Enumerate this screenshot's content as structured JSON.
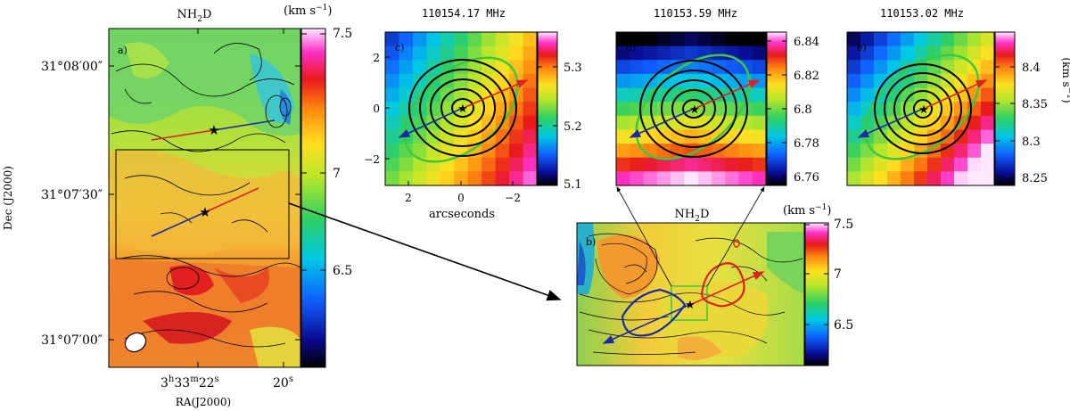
{
  "figure": {
    "panel_a": {
      "label": "a)",
      "title": "NH",
      "title_sub": "2",
      "title_end": "D",
      "colorbar_unit": "(km s",
      "colorbar_unit_sup": "−1",
      "colorbar_unit_end": ")",
      "colorbar_ticks": [
        "7.5",
        "7",
        "6.5"
      ],
      "dec_ticks": [
        "31°08′00″",
        "31°07′30″",
        "31°07′00″"
      ],
      "ra_ticks": [
        "3",
        "h",
        "33",
        "m",
        "22",
        "s",
        "20",
        "s"
      ],
      "xlabel": "RA(J2000)",
      "ylabel": "Dec (J2000)"
    },
    "panel_b": {
      "label": "b)",
      "title": "NH",
      "title_sub": "2",
      "title_end": "D",
      "colorbar_unit": "(km s",
      "colorbar_unit_sup": "−1",
      "colorbar_unit_end": ")",
      "colorbar_ticks": [
        "7.5",
        "7",
        "6.5"
      ]
    },
    "panel_c": {
      "label": "c)",
      "title": "110154.17 MHz",
      "colorbar_ticks": [
        "5.3",
        "5.2",
        "5.1"
      ],
      "x_ticks": [
        "2",
        "0",
        "−2"
      ],
      "y_ticks": [
        "2",
        "0",
        "−2"
      ],
      "xlabel": "arcseconds"
    },
    "panel_d": {
      "label": "d)",
      "title": "110153.59 MHz",
      "colorbar_ticks": [
        "6.84",
        "6.82",
        "6.8",
        "6.78",
        "6.76"
      ]
    },
    "panel_e": {
      "label": "e)",
      "title": "110153.02 MHz",
      "colorbar_ticks": [
        "8.4",
        "8.35",
        "8.3",
        "8.25"
      ],
      "colorbar_unit": "(km s",
      "colorbar_unit_sup": "−1",
      "colorbar_unit_end": ")"
    }
  },
  "chart_data": [
    {
      "type": "heatmap",
      "panel": "a",
      "title": "NH2D",
      "colorbar_label": "(km s−1)",
      "colorbar_range": [
        6.0,
        7.5
      ],
      "colorbar_ticks": [
        7.5,
        7,
        6.5
      ],
      "y_ticks": [
        "31°08′00″",
        "31°07′30″",
        "31°07′00″"
      ],
      "x_ticks": [
        "3h33m22s",
        "20s"
      ],
      "xlabel": "RA(J2000)",
      "ylabel": "Dec (J2000)",
      "colormap": "rainbow"
    },
    {
      "type": "heatmap",
      "panel": "b",
      "title": "NH2D",
      "colorbar_label": "(km s−1)",
      "colorbar_range": [
        6.0,
        7.5
      ],
      "colorbar_ticks": [
        7.5,
        7,
        6.5
      ],
      "colormap": "rainbow"
    },
    {
      "type": "heatmap",
      "panel": "c",
      "title": "110154.17 MHz",
      "colorbar_range": [
        5.1,
        5.35
      ],
      "colorbar_ticks": [
        5.3,
        5.2,
        5.1
      ],
      "x_ticks": [
        2,
        0,
        -2
      ],
      "y_ticks": [
        2,
        0,
        -2
      ],
      "xlabel": "arcseconds",
      "colormap": "rainbow"
    },
    {
      "type": "heatmap",
      "panel": "d",
      "title": "110153.59 MHz",
      "colorbar_range": [
        6.755,
        6.845
      ],
      "colorbar_ticks": [
        6.84,
        6.82,
        6.8,
        6.78,
        6.76
      ],
      "colormap": "rainbow"
    },
    {
      "type": "heatmap",
      "panel": "e",
      "title": "110153.02 MHz",
      "colorbar_label": "(km s−1)",
      "colorbar_range": [
        8.245,
        8.45
      ],
      "colorbar_ticks": [
        8.4,
        8.35,
        8.3,
        8.25
      ],
      "colormap": "rainbow"
    }
  ],
  "colors": {
    "red_lobe": "#e02020",
    "blue_lobe": "#1a2aa8",
    "green_ellipse": "#3ec83e",
    "contour": "#000000"
  }
}
